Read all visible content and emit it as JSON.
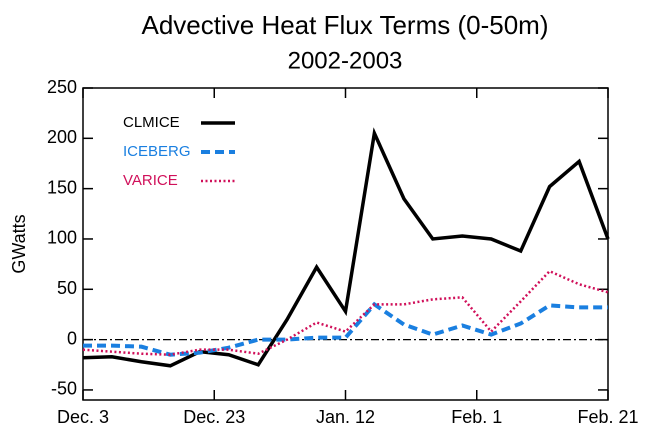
{
  "chart_data": {
    "type": "line",
    "title": "Advective Heat Flux Terms (0-50m)",
    "subtitle": "2002-2003",
    "y_label": "GWatts",
    "x": [
      0,
      4.4,
      8.9,
      13.3,
      17.8,
      22.2,
      26.7,
      31.1,
      35.6,
      40,
      44.4,
      48.9,
      53.3,
      57.8,
      62.2,
      66.7,
      71.1,
      75.6,
      80
    ],
    "xlim": [
      0,
      80
    ],
    "xticks": [
      {
        "value": 0,
        "label": "Dec. 3"
      },
      {
        "value": 20,
        "label": "Dec. 23"
      },
      {
        "value": 40,
        "label": "Jan. 12"
      },
      {
        "value": 60,
        "label": "Feb. 1"
      },
      {
        "value": 80,
        "label": "Feb. 21"
      }
    ],
    "ylim": [
      -60,
      250
    ],
    "yticks": [
      -50,
      0,
      50,
      100,
      150,
      200,
      250
    ],
    "zero_line": true,
    "legend": "upper-left",
    "series": [
      {
        "name": "CLMICE",
        "color": "#000000",
        "line_style": "solid",
        "values": [
          -18,
          -17,
          -22,
          -26,
          -12,
          -15,
          -25,
          20,
          72,
          28,
          205,
          140,
          100,
          103,
          100,
          88,
          152,
          177,
          100
        ]
      },
      {
        "name": "ICEBERG",
        "color": "#1a7fe0",
        "line_style": "dashed",
        "values": [
          -6,
          -6,
          -7,
          -15,
          -13,
          -8,
          0,
          0,
          2,
          2,
          35,
          15,
          5,
          14,
          5,
          16,
          34,
          32,
          32
        ]
      },
      {
        "name": "VARICE",
        "color": "#d0105a",
        "line_style": "dotted",
        "values": [
          -10,
          -12,
          -14,
          -15,
          -10,
          -10,
          -14,
          0,
          17,
          8,
          35,
          35,
          40,
          42,
          8,
          38,
          68,
          55,
          47
        ]
      }
    ]
  }
}
